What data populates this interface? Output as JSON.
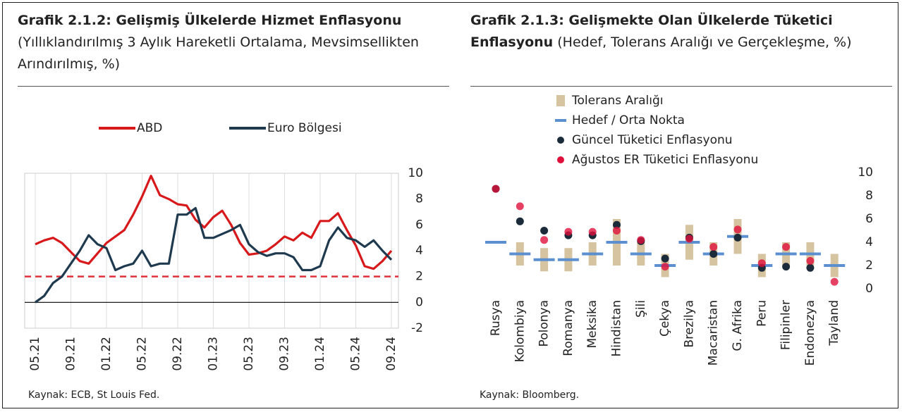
{
  "chart_data": [
    {
      "type": "line",
      "title": "Grafik 2.1.2: Gelişmiş Ülkelerde Hizmet Enflasyonu",
      "subtitle": "(Yıllıklandırılmış 3 Aylık Hareketli Ortalama, Mevsimsellikten Arındırılmış, %)",
      "source": "Kaynak: ECB, St Louis Fed.",
      "categories": [
        "05.21",
        null,
        null,
        null,
        "09.21",
        null,
        null,
        null,
        "01.22",
        null,
        null,
        null,
        "05.22",
        null,
        null,
        null,
        "09.22",
        null,
        null,
        null,
        "01.23",
        null,
        null,
        null,
        "05.23",
        null,
        null,
        null,
        "09.23",
        null,
        null,
        null,
        "01.24",
        null,
        null,
        null,
        "05.24",
        null,
        null,
        null,
        "09.24"
      ],
      "series": [
        {
          "name": "ABD",
          "color": "#d7191c",
          "values": [
            4.5,
            4.8,
            5.0,
            4.6,
            3.9,
            3.2,
            3.0,
            3.8,
            4.6,
            5.1,
            5.6,
            6.8,
            8.2,
            9.8,
            8.3,
            8.0,
            7.6,
            7.5,
            6.4,
            5.8,
            6.6,
            7.1,
            6.0,
            4.6,
            3.7,
            3.8,
            4.0,
            4.5,
            5.1,
            4.8,
            5.4,
            5.0,
            6.3,
            6.3,
            6.9,
            5.6,
            4.4,
            2.8,
            2.6,
            3.2,
            4.0
          ]
        },
        {
          "name": "Euro Bölgesi",
          "color": "#1f3a4f",
          "values": [
            0,
            0.5,
            1.5,
            2.0,
            3.0,
            4.0,
            5.2,
            4.5,
            4.2,
            2.5,
            2.8,
            3.0,
            4.0,
            2.8,
            3.0,
            3.0,
            6.8,
            6.8,
            7.3,
            5.0,
            5.0,
            5.3,
            5.6,
            6.0,
            4.5,
            3.9,
            3.6,
            3.8,
            3.8,
            3.5,
            2.5,
            2.5,
            2.8,
            4.8,
            5.8,
            5.0,
            4.8,
            4.3,
            4.8,
            4.0,
            3.3
          ]
        }
      ],
      "reference_line": {
        "value": 2,
        "color": "#e0303a"
      },
      "ylim": [
        -2,
        10
      ],
      "yticks": [
        -2,
        0,
        2,
        4,
        6,
        8,
        10
      ],
      "grid": true
    },
    {
      "type": "range_dot",
      "title": "Grafik 2.1.3: Gelişmekte Olan Ülkelerde Tüketici Enflasyonu",
      "subtitle": "(Hedef, Tolerans Aralığı ve Gerçekleşme, %)",
      "source": "Kaynak: Bloomberg.",
      "categories": [
        "Rusya",
        "Kolombiya",
        "Polonya",
        "Romanya",
        "Meksika",
        "Hindistan",
        "Şili",
        "Çekya",
        "Brezilya",
        "Macaristan",
        "G. Afrika",
        "Peru",
        "Filipinler",
        "Endonezya",
        "Tayland"
      ],
      "range": {
        "name": "Tolerans Aralığı",
        "color": "#d6c3a0",
        "low": [
          null,
          2,
          1.5,
          1.5,
          2,
          2,
          2,
          1,
          2.5,
          2,
          3,
          1,
          2,
          2,
          1
        ],
        "high": [
          null,
          4,
          3.5,
          3.5,
          4,
          6,
          4,
          3,
          5.5,
          4,
          6,
          3,
          4,
          4,
          3
        ]
      },
      "target": {
        "name": "Hedef / Orta Nokta",
        "color": "#5b8fd0",
        "values": [
          4,
          3,
          2.5,
          2.5,
          3,
          4,
          3,
          2,
          4,
          3,
          4.5,
          2,
          3,
          3,
          2
        ]
      },
      "series": [
        {
          "name": "Güncel Tüketici Enflasyonu",
          "color": "#1c2b3a",
          "values": [
            8.6,
            5.8,
            5.0,
            4.6,
            4.6,
            5.5,
            4.1,
            2.6,
            4.4,
            3.0,
            4.4,
            1.8,
            1.9,
            1.8,
            null
          ]
        },
        {
          "name": "Ağustos ER Tüketici Enflasyonu",
          "color": "#e0103c",
          "values": [
            8.6,
            7.1,
            4.2,
            4.9,
            4.9,
            5.0,
            4.2,
            1.9,
            4.3,
            3.6,
            5.1,
            2.2,
            3.6,
            2.4,
            0.6
          ]
        }
      ],
      "ylim": [
        0,
        10
      ],
      "yticks": [
        0,
        2,
        4,
        6,
        8,
        10
      ]
    }
  ]
}
